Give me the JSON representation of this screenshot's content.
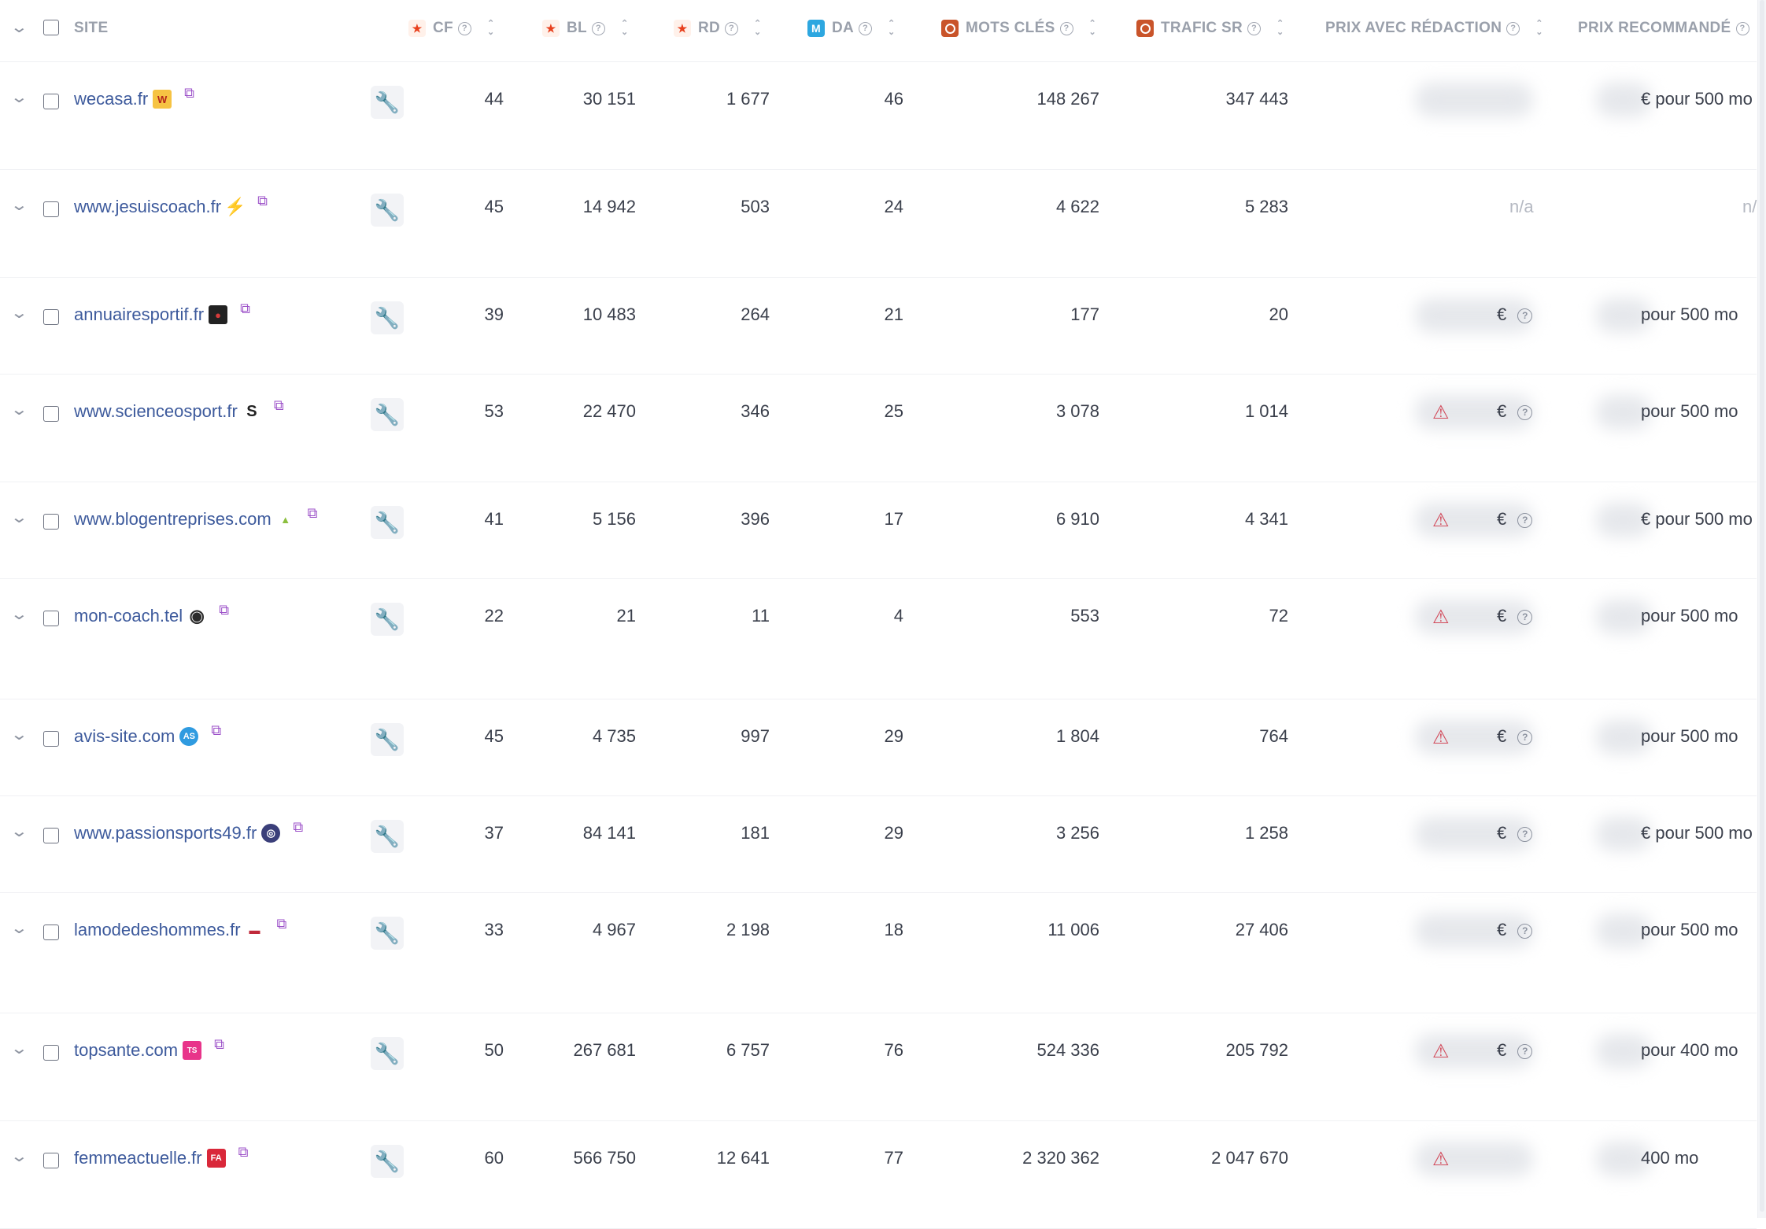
{
  "header": {
    "site": "SITE",
    "cf": "CF",
    "bl": "BL",
    "rd": "RD",
    "da": "DA",
    "mots_cles": "MOTS CLÉS",
    "trafic": "TRAFIC SR",
    "prix_redaction": "PRIX AVEC RÉDACTION",
    "prix_reco": "PRIX RECOMMANDÉ"
  },
  "icons": {
    "help": "?",
    "star": "★",
    "m": "M",
    "sort_up": "⌃",
    "sort_down": "⌄",
    "chevron": "⌄",
    "tool": "🔧",
    "ext": "⧉",
    "warn": "⚠",
    "euro": "€"
  },
  "rows": [
    {
      "site": "wecasa.fr",
      "fav": "W",
      "cf": "44",
      "bl": "30 151",
      "rd": "1 677",
      "da": "46",
      "mots": "148 267",
      "trafic": "347 443",
      "reco": "€ pour 500 mo"
    },
    {
      "site": "www.jesuiscoach.fr",
      "fav": "⚡",
      "cf": "45",
      "bl": "14 942",
      "rd": "503",
      "da": "24",
      "mots": "4 622",
      "trafic": "5 283",
      "na1": "n/a",
      "na2": "n/"
    },
    {
      "site": "annuairesportif.fr",
      "fav": "●",
      "cf": "39",
      "bl": "10 483",
      "rd": "264",
      "da": "21",
      "mots": "177",
      "trafic": "20",
      "reco": "pour 500 mo"
    },
    {
      "site": "www.scienceosport.fr",
      "fav": "S",
      "cf": "53",
      "bl": "22 470",
      "rd": "346",
      "da": "25",
      "mots": "3 078",
      "trafic": "1 014",
      "reco": "pour 500 mo"
    },
    {
      "site": "www.blogentreprises.com",
      "fav": "▲",
      "cf": "41",
      "bl": "5 156",
      "rd": "396",
      "da": "17",
      "mots": "6 910",
      "trafic": "4 341",
      "reco": "€ pour 500 mo"
    },
    {
      "site": "mon-coach.tel",
      "fav": "◉",
      "cf": "22",
      "bl": "21",
      "rd": "11",
      "da": "4",
      "mots": "553",
      "trafic": "72",
      "reco": "pour 500 mo"
    },
    {
      "site": "avis-site.com",
      "fav": "AS",
      "cf": "45",
      "bl": "4 735",
      "rd": "997",
      "da": "29",
      "mots": "1 804",
      "trafic": "764",
      "reco": "pour 500 mo"
    },
    {
      "site": "www.passionsports49.fr",
      "fav": "◎",
      "cf": "37",
      "bl": "84 141",
      "rd": "181",
      "da": "29",
      "mots": "3 256",
      "trafic": "1 258",
      "reco": "€ pour 500 mo"
    },
    {
      "site": "lamodedeshommes.fr",
      "fav": "▬",
      "cf": "33",
      "bl": "4 967",
      "rd": "2 198",
      "da": "18",
      "mots": "11 006",
      "trafic": "27 406",
      "reco": "pour 500 mo"
    },
    {
      "site": "topsante.com",
      "fav": "TS",
      "cf": "50",
      "bl": "267 681",
      "rd": "6 757",
      "da": "76",
      "mots": "524 336",
      "trafic": "205 792",
      "reco": "pour 400 mo"
    },
    {
      "site": "femmeactuelle.fr",
      "fav": "FA",
      "cf": "60",
      "bl": "566 750",
      "rd": "12 641",
      "da": "77",
      "mots": "2 320 362",
      "trafic": "2 047 670",
      "reco": "400 mo"
    }
  ]
}
